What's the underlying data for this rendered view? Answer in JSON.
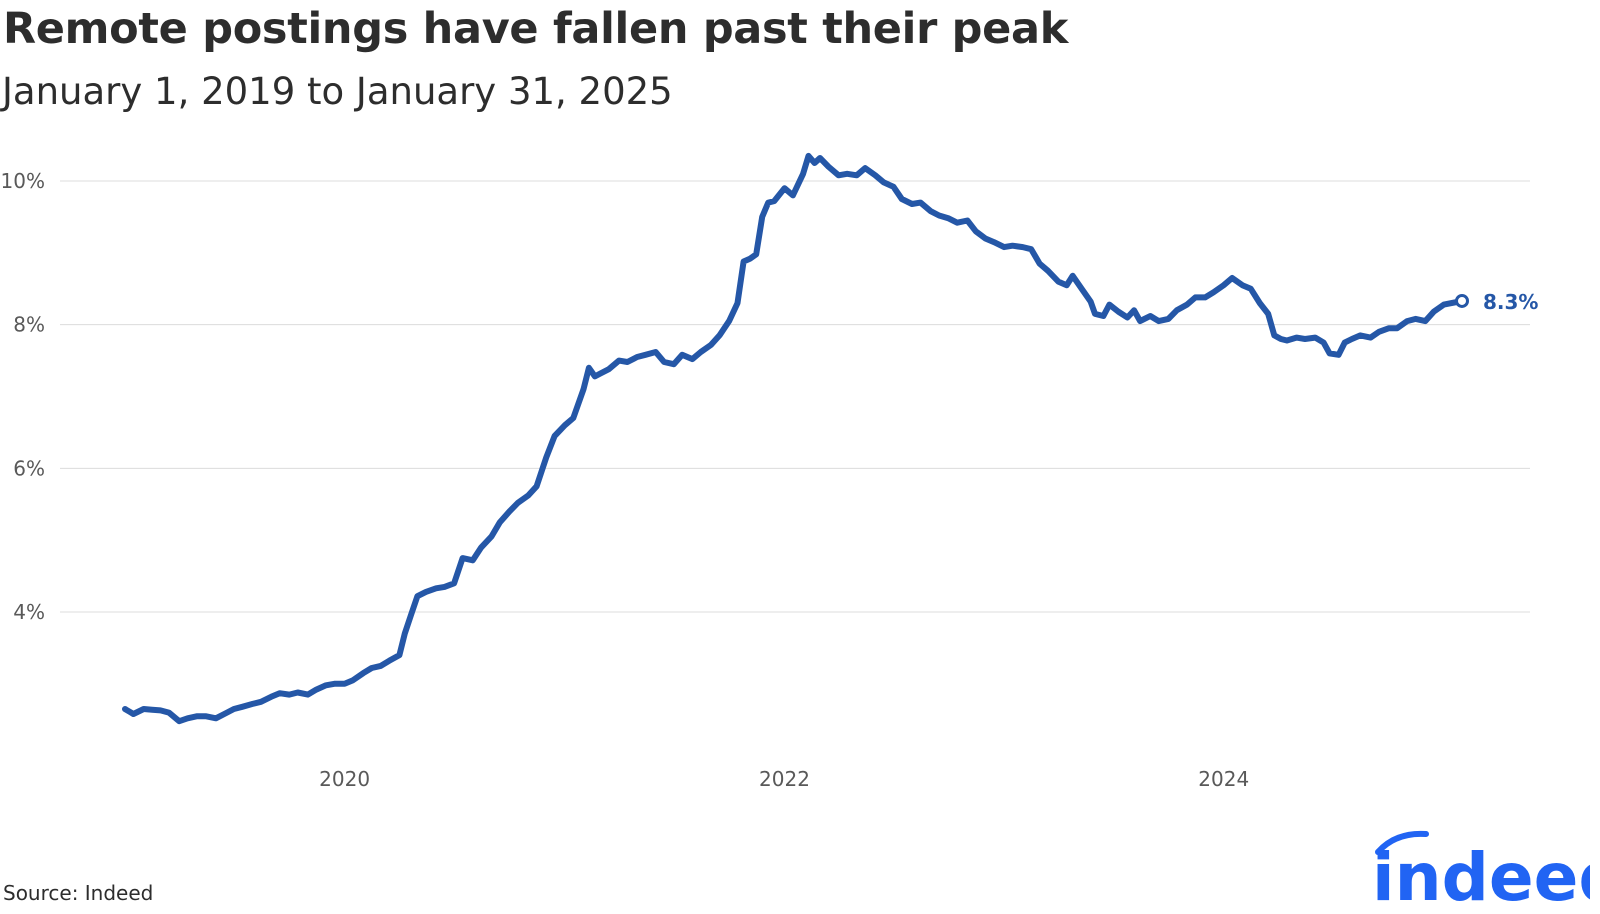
{
  "title": "Remote postings have fallen past their peak",
  "subtitle": "January 1, 2019 to January 31, 2025",
  "source": "Source: Indeed",
  "logo_text": "indeed",
  "colors": {
    "line": "#2557a7",
    "grid": "#dcdcdc",
    "text": "#2d2d2d",
    "logo": "#2164f3"
  },
  "chart_data": {
    "type": "line",
    "x_range": [
      "2019-01-01",
      "2025-01-31"
    ],
    "ylim": [
      2.0,
      10.6
    ],
    "yticks": [
      4,
      6,
      8,
      10
    ],
    "ytick_labels": [
      "4%",
      "6%",
      "8%",
      "10%"
    ],
    "xticks": [
      "2020-01-01",
      "2022-01-01",
      "2024-01-01"
    ],
    "xtick_labels": [
      "2020",
      "2022",
      "2024"
    ],
    "grid": true,
    "end_label": "8.3%",
    "series": [
      {
        "points": [
          [
            "2019-01-01",
            2.65
          ],
          [
            "2019-01-15",
            2.58
          ],
          [
            "2019-02-01",
            2.65
          ],
          [
            "2019-02-15",
            2.64
          ],
          [
            "2019-03-01",
            2.63
          ],
          [
            "2019-03-15",
            2.6
          ],
          [
            "2019-04-01",
            2.48
          ],
          [
            "2019-04-15",
            2.52
          ],
          [
            "2019-05-01",
            2.55
          ],
          [
            "2019-05-15",
            2.55
          ],
          [
            "2019-06-01",
            2.52
          ],
          [
            "2019-06-15",
            2.58
          ],
          [
            "2019-07-01",
            2.65
          ],
          [
            "2019-07-15",
            2.68
          ],
          [
            "2019-08-01",
            2.72
          ],
          [
            "2019-08-15",
            2.75
          ],
          [
            "2019-09-01",
            2.82
          ],
          [
            "2019-09-15",
            2.87
          ],
          [
            "2019-10-01",
            2.85
          ],
          [
            "2019-10-15",
            2.88
          ],
          [
            "2019-11-01",
            2.85
          ],
          [
            "2019-11-15",
            2.92
          ],
          [
            "2019-12-01",
            2.98
          ],
          [
            "2019-12-15",
            3.0
          ],
          [
            "2020-01-01",
            3.0
          ],
          [
            "2020-01-15",
            3.05
          ],
          [
            "2020-02-01",
            3.15
          ],
          [
            "2020-02-15",
            3.22
          ],
          [
            "2020-03-01",
            3.25
          ],
          [
            "2020-03-15",
            3.32
          ],
          [
            "2020-04-01",
            3.4
          ],
          [
            "2020-04-10",
            3.7
          ],
          [
            "2020-04-20",
            3.95
          ],
          [
            "2020-05-01",
            4.22
          ],
          [
            "2020-05-15",
            4.28
          ],
          [
            "2020-06-01",
            4.33
          ],
          [
            "2020-06-15",
            4.35
          ],
          [
            "2020-07-01",
            4.4
          ],
          [
            "2020-07-15",
            4.75
          ],
          [
            "2020-08-01",
            4.72
          ],
          [
            "2020-08-15",
            4.9
          ],
          [
            "2020-09-01",
            5.05
          ],
          [
            "2020-09-15",
            5.25
          ],
          [
            "2020-10-01",
            5.4
          ],
          [
            "2020-10-15",
            5.52
          ],
          [
            "2020-11-01",
            5.62
          ],
          [
            "2020-11-15",
            5.75
          ],
          [
            "2020-12-01",
            6.15
          ],
          [
            "2020-12-15",
            6.45
          ],
          [
            "2021-01-01",
            6.6
          ],
          [
            "2021-01-15",
            6.7
          ],
          [
            "2021-02-01",
            7.1
          ],
          [
            "2021-02-10",
            7.4
          ],
          [
            "2021-02-20",
            7.28
          ],
          [
            "2021-03-01",
            7.32
          ],
          [
            "2021-03-15",
            7.38
          ],
          [
            "2021-04-01",
            7.5
          ],
          [
            "2021-04-15",
            7.48
          ],
          [
            "2021-05-01",
            7.55
          ],
          [
            "2021-05-15",
            7.58
          ],
          [
            "2021-06-01",
            7.62
          ],
          [
            "2021-06-15",
            7.48
          ],
          [
            "2021-07-01",
            7.45
          ],
          [
            "2021-07-15",
            7.58
          ],
          [
            "2021-08-01",
            7.52
          ],
          [
            "2021-08-15",
            7.62
          ],
          [
            "2021-09-01",
            7.72
          ],
          [
            "2021-09-15",
            7.85
          ],
          [
            "2021-10-01",
            8.05
          ],
          [
            "2021-10-15",
            8.3
          ],
          [
            "2021-10-25",
            8.88
          ],
          [
            "2021-11-05",
            8.92
          ],
          [
            "2021-11-15",
            8.98
          ],
          [
            "2021-11-25",
            9.5
          ],
          [
            "2021-12-05",
            9.7
          ],
          [
            "2021-12-15",
            9.72
          ],
          [
            "2022-01-01",
            9.9
          ],
          [
            "2022-01-15",
            9.8
          ],
          [
            "2022-02-01",
            10.1
          ],
          [
            "2022-02-10",
            10.35
          ],
          [
            "2022-02-20",
            10.25
          ],
          [
            "2022-03-01",
            10.32
          ],
          [
            "2022-03-15",
            10.2
          ],
          [
            "2022-04-01",
            10.08
          ],
          [
            "2022-04-15",
            10.1
          ],
          [
            "2022-05-01",
            10.08
          ],
          [
            "2022-05-15",
            10.18
          ],
          [
            "2022-06-01",
            10.08
          ],
          [
            "2022-06-15",
            9.98
          ],
          [
            "2022-07-01",
            9.92
          ],
          [
            "2022-07-15",
            9.75
          ],
          [
            "2022-08-01",
            9.68
          ],
          [
            "2022-08-15",
            9.7
          ],
          [
            "2022-09-01",
            9.58
          ],
          [
            "2022-09-15",
            9.52
          ],
          [
            "2022-10-01",
            9.48
          ],
          [
            "2022-10-15",
            9.42
          ],
          [
            "2022-11-01",
            9.45
          ],
          [
            "2022-11-15",
            9.3
          ],
          [
            "2022-12-01",
            9.2
          ],
          [
            "2022-12-15",
            9.15
          ],
          [
            "2023-01-01",
            9.08
          ],
          [
            "2023-01-15",
            9.1
          ],
          [
            "2023-02-01",
            9.08
          ],
          [
            "2023-02-15",
            9.05
          ],
          [
            "2023-03-01",
            8.85
          ],
          [
            "2023-03-15",
            8.75
          ],
          [
            "2023-04-01",
            8.6
          ],
          [
            "2023-04-15",
            8.55
          ],
          [
            "2023-04-25",
            8.68
          ],
          [
            "2023-05-10",
            8.5
          ],
          [
            "2023-05-25",
            8.32
          ],
          [
            "2023-06-01",
            8.15
          ],
          [
            "2023-06-15",
            8.12
          ],
          [
            "2023-06-25",
            8.28
          ],
          [
            "2023-07-10",
            8.18
          ],
          [
            "2023-07-25",
            8.1
          ],
          [
            "2023-08-05",
            8.2
          ],
          [
            "2023-08-15",
            8.05
          ],
          [
            "2023-09-01",
            8.12
          ],
          [
            "2023-09-15",
            8.05
          ],
          [
            "2023-10-01",
            8.08
          ],
          [
            "2023-10-15",
            8.2
          ],
          [
            "2023-11-01",
            8.28
          ],
          [
            "2023-11-15",
            8.38
          ],
          [
            "2023-12-01",
            8.38
          ],
          [
            "2023-12-15",
            8.45
          ],
          [
            "2024-01-01",
            8.55
          ],
          [
            "2024-01-15",
            8.65
          ],
          [
            "2024-02-01",
            8.55
          ],
          [
            "2024-02-15",
            8.5
          ],
          [
            "2024-03-01",
            8.3
          ],
          [
            "2024-03-15",
            8.15
          ],
          [
            "2024-03-25",
            7.85
          ],
          [
            "2024-04-05",
            7.8
          ],
          [
            "2024-04-15",
            7.78
          ],
          [
            "2024-05-01",
            7.82
          ],
          [
            "2024-05-15",
            7.8
          ],
          [
            "2024-06-01",
            7.82
          ],
          [
            "2024-06-15",
            7.75
          ],
          [
            "2024-06-25",
            7.6
          ],
          [
            "2024-07-10",
            7.58
          ],
          [
            "2024-07-20",
            7.75
          ],
          [
            "2024-08-01",
            7.8
          ],
          [
            "2024-08-15",
            7.85
          ],
          [
            "2024-09-01",
            7.82
          ],
          [
            "2024-09-15",
            7.9
          ],
          [
            "2024-10-01",
            7.95
          ],
          [
            "2024-10-15",
            7.95
          ],
          [
            "2024-11-01",
            8.05
          ],
          [
            "2024-11-15",
            8.08
          ],
          [
            "2024-12-01",
            8.05
          ],
          [
            "2024-12-15",
            8.18
          ],
          [
            "2025-01-01",
            8.28
          ],
          [
            "2025-01-31",
            8.33
          ]
        ]
      }
    ]
  }
}
